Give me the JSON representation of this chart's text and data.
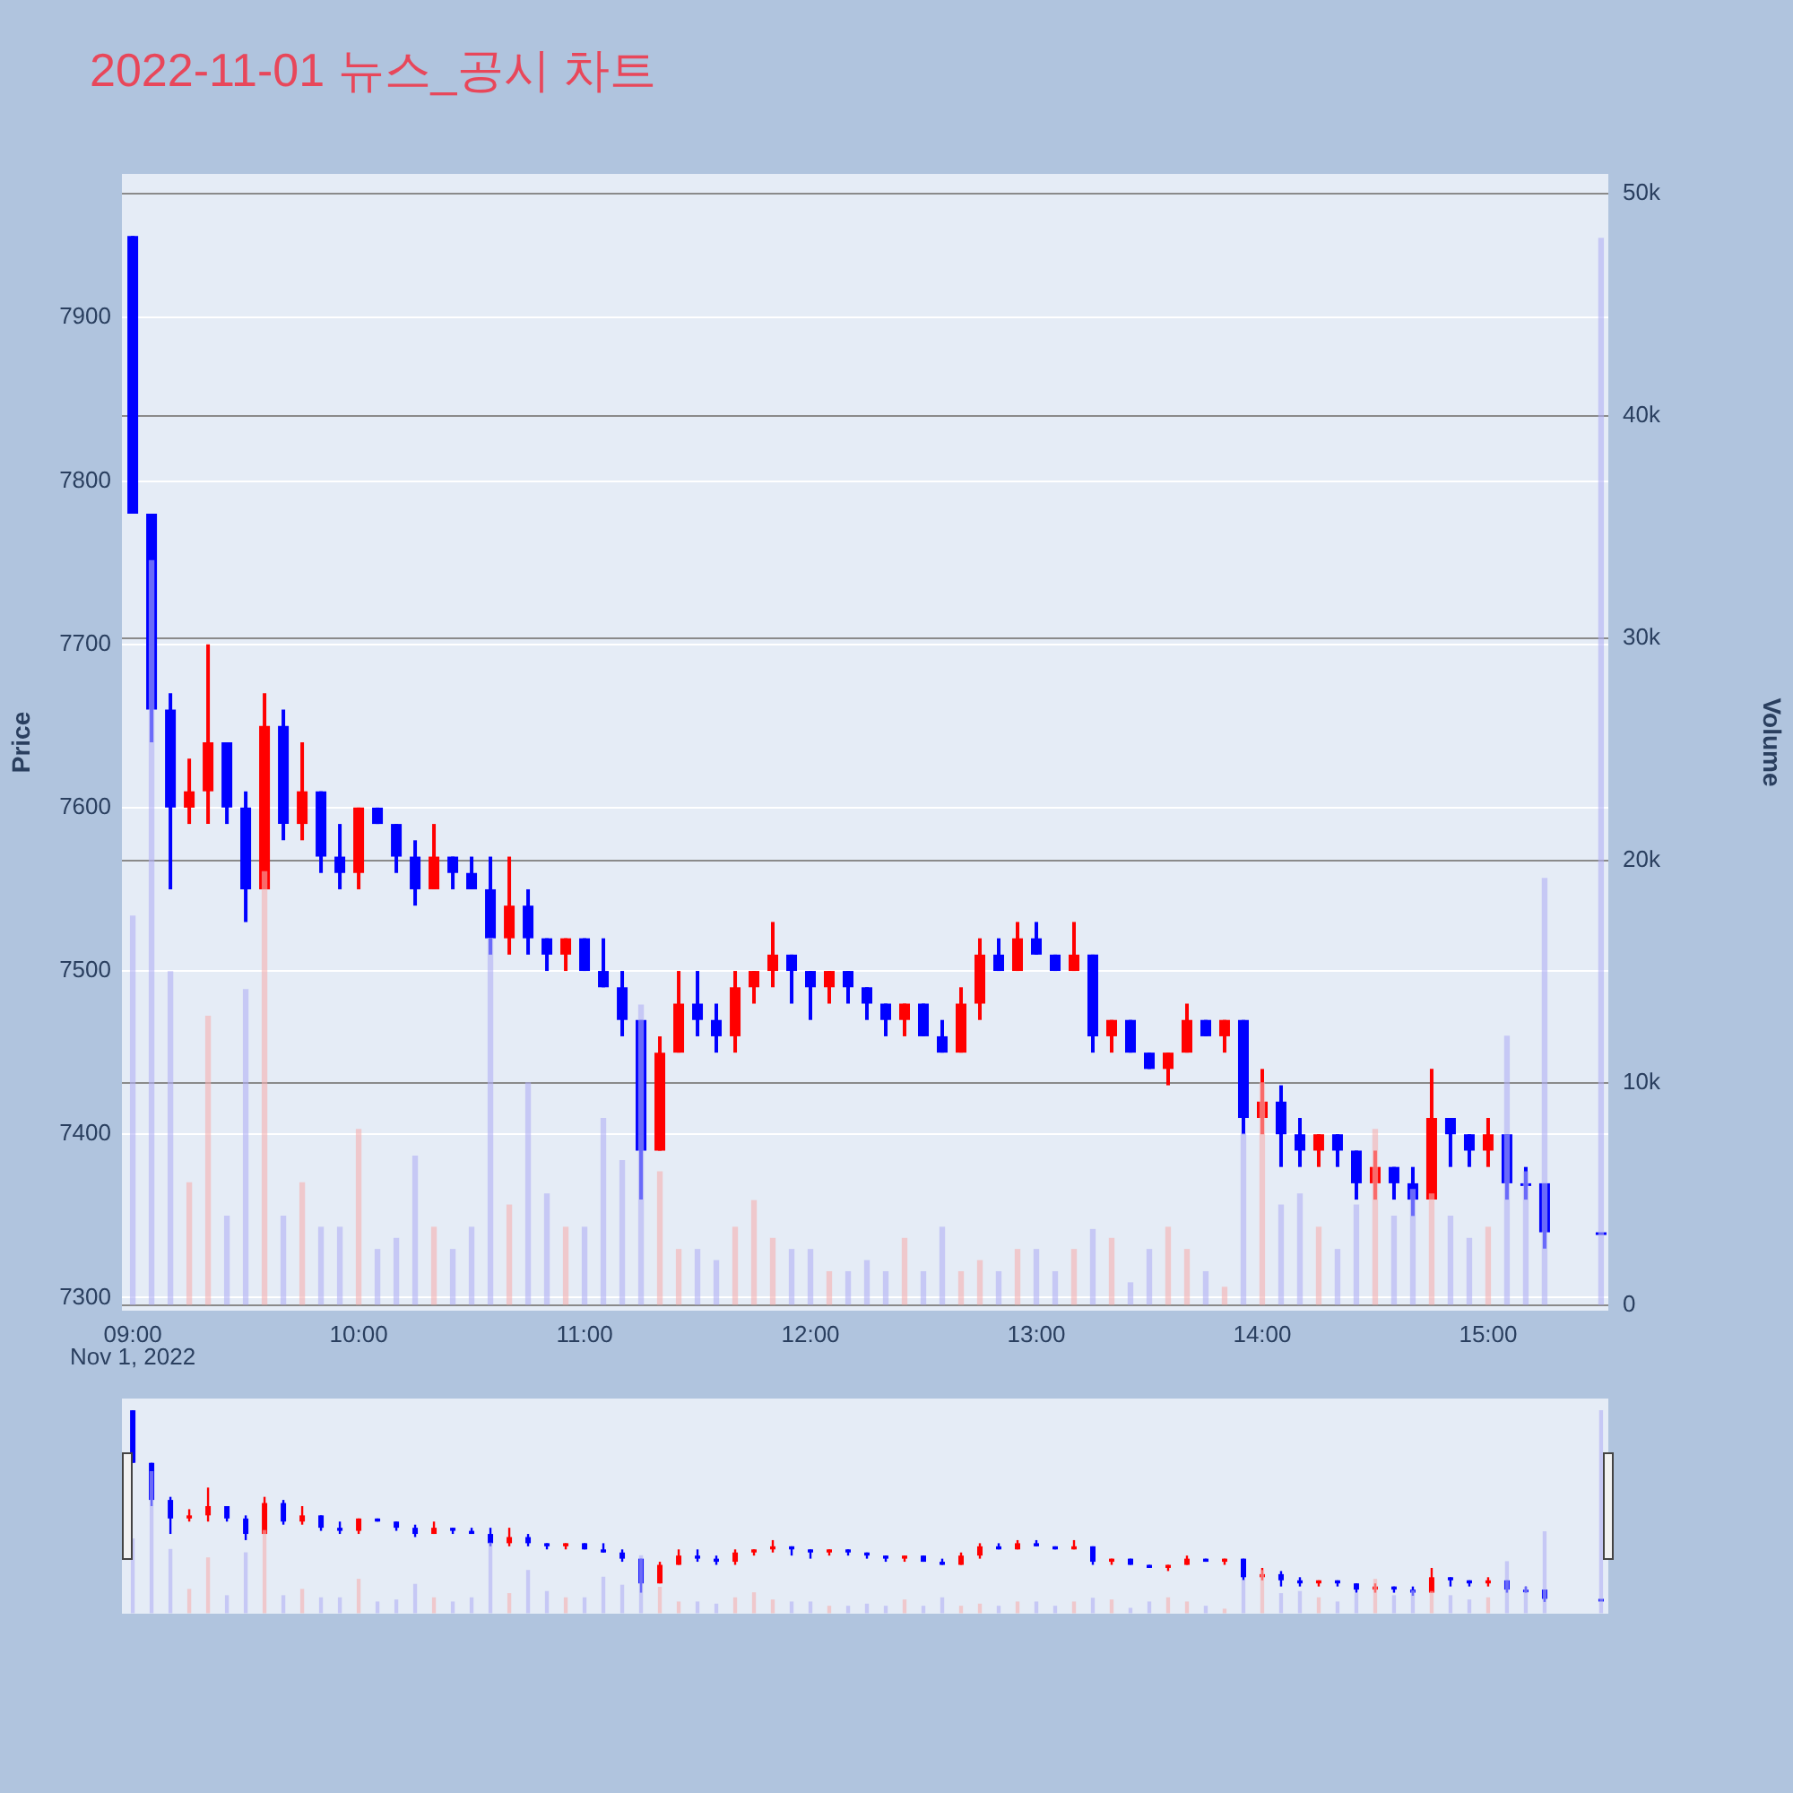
{
  "chart_data": {
    "type": "candlestick",
    "title": "2022-11-01 뉴스_공시 차트",
    "ylabel": "Price",
    "y2label": "Volume",
    "annotations": [
      "Nov 1, 2022"
    ],
    "x": [
      9.0,
      9.0833,
      9.1667,
      9.25,
      9.3333,
      9.4167,
      9.5,
      9.5833,
      9.6667,
      9.75,
      9.8333,
      9.9167,
      10.0,
      10.0833,
      10.1667,
      10.25,
      10.3333,
      10.4167,
      10.5,
      10.5833,
      10.6667,
      10.75,
      10.8333,
      10.9167,
      11.0,
      11.0833,
      11.1667,
      11.25,
      11.3333,
      11.4167,
      11.5,
      11.5833,
      11.6667,
      11.75,
      11.8333,
      11.9167,
      12.0,
      12.0833,
      12.1667,
      12.25,
      12.3333,
      12.4167,
      12.5,
      12.5833,
      12.6667,
      12.75,
      12.8333,
      12.9167,
      13.0,
      13.0833,
      13.1667,
      13.25,
      13.3333,
      13.4167,
      13.5,
      13.5833,
      13.6667,
      13.75,
      13.8333,
      13.9167,
      14.0,
      14.0833,
      14.1667,
      14.25,
      14.3333,
      14.4167,
      14.5,
      14.5833,
      14.6667,
      14.75,
      14.8333,
      14.9167,
      15.0,
      15.0833,
      15.1667,
      15.25,
      15.5
    ],
    "xlim": [
      8.952,
      15.532
    ],
    "xticks": [
      {
        "value": 9,
        "label": "09:00"
      },
      {
        "value": 10,
        "label": "10:00"
      },
      {
        "value": 11,
        "label": "11:00"
      },
      {
        "value": 12,
        "label": "12:00"
      },
      {
        "value": 13,
        "label": "13:00"
      },
      {
        "value": 14,
        "label": "14:00"
      },
      {
        "value": 15,
        "label": "15:00"
      }
    ],
    "ylim": [
      7292,
      7988
    ],
    "yticks": [
      7300,
      7400,
      7500,
      7600,
      7700,
      7800,
      7900
    ],
    "y2lim": [
      -250,
      50900
    ],
    "y2ticks": [
      0,
      {
        "value": 10000,
        "label": "10k"
      },
      {
        "value": 20000,
        "label": "20k"
      },
      {
        "value": 30000,
        "label": "30k"
      },
      {
        "value": 40000,
        "label": "40k"
      },
      {
        "value": 50000,
        "label": "50k"
      }
    ],
    "grid": "y",
    "series": [
      {
        "type": "candlestick",
        "ohlc": [
          [
            7950,
            7950,
            7780,
            7780
          ],
          [
            7780,
            7780,
            7640,
            7660
          ],
          [
            7660,
            7670,
            7550,
            7600
          ],
          [
            7600,
            7630,
            7590,
            7610
          ],
          [
            7610,
            7700,
            7590,
            7640
          ],
          [
            7640,
            7640,
            7590,
            7600
          ],
          [
            7600,
            7610,
            7530,
            7550
          ],
          [
            7550,
            7670,
            7550,
            7650
          ],
          [
            7650,
            7660,
            7580,
            7590
          ],
          [
            7590,
            7640,
            7580,
            7610
          ],
          [
            7610,
            7610,
            7560,
            7570
          ],
          [
            7570,
            7590,
            7550,
            7560
          ],
          [
            7560,
            7600,
            7550,
            7600
          ],
          [
            7600,
            7600,
            7590,
            7590
          ],
          [
            7590,
            7590,
            7560,
            7570
          ],
          [
            7570,
            7580,
            7540,
            7550
          ],
          [
            7550,
            7590,
            7550,
            7570
          ],
          [
            7570,
            7570,
            7550,
            7560
          ],
          [
            7560,
            7570,
            7550,
            7550
          ],
          [
            7550,
            7570,
            7510,
            7520
          ],
          [
            7520,
            7570,
            7510,
            7540
          ],
          [
            7540,
            7550,
            7510,
            7520
          ],
          [
            7520,
            7520,
            7500,
            7510
          ],
          [
            7510,
            7520,
            7500,
            7520
          ],
          [
            7520,
            7520,
            7500,
            7500
          ],
          [
            7500,
            7520,
            7490,
            7490
          ],
          [
            7490,
            7500,
            7460,
            7470
          ],
          [
            7470,
            7470,
            7360,
            7390
          ],
          [
            7390,
            7460,
            7390,
            7450
          ],
          [
            7450,
            7500,
            7450,
            7480
          ],
          [
            7480,
            7500,
            7460,
            7470
          ],
          [
            7470,
            7480,
            7450,
            7460
          ],
          [
            7460,
            7500,
            7450,
            7490
          ],
          [
            7490,
            7500,
            7480,
            7500
          ],
          [
            7500,
            7530,
            7490,
            7510
          ],
          [
            7510,
            7510,
            7480,
            7500
          ],
          [
            7500,
            7500,
            7470,
            7490
          ],
          [
            7490,
            7500,
            7480,
            7500
          ],
          [
            7500,
            7500,
            7480,
            7490
          ],
          [
            7490,
            7490,
            7470,
            7480
          ],
          [
            7480,
            7480,
            7460,
            7470
          ],
          [
            7470,
            7480,
            7460,
            7480
          ],
          [
            7480,
            7480,
            7460,
            7460
          ],
          [
            7460,
            7470,
            7450,
            7450
          ],
          [
            7450,
            7490,
            7450,
            7480
          ],
          [
            7480,
            7520,
            7470,
            7510
          ],
          [
            7510,
            7520,
            7500,
            7500
          ],
          [
            7500,
            7530,
            7500,
            7520
          ],
          [
            7520,
            7530,
            7510,
            7510
          ],
          [
            7510,
            7510,
            7500,
            7500
          ],
          [
            7500,
            7530,
            7500,
            7510
          ],
          [
            7510,
            7510,
            7450,
            7460
          ],
          [
            7460,
            7470,
            7450,
            7470
          ],
          [
            7470,
            7470,
            7450,
            7450
          ],
          [
            7450,
            7450,
            7440,
            7440
          ],
          [
            7440,
            7450,
            7430,
            7450
          ],
          [
            7450,
            7480,
            7450,
            7470
          ],
          [
            7470,
            7470,
            7460,
            7460
          ],
          [
            7460,
            7470,
            7450,
            7470
          ],
          [
            7470,
            7470,
            7400,
            7410
          ],
          [
            7410,
            7440,
            7400,
            7420
          ],
          [
            7420,
            7430,
            7380,
            7400
          ],
          [
            7400,
            7410,
            7380,
            7390
          ],
          [
            7390,
            7400,
            7380,
            7400
          ],
          [
            7400,
            7400,
            7380,
            7390
          ],
          [
            7390,
            7390,
            7360,
            7370
          ],
          [
            7370,
            7390,
            7360,
            7380
          ],
          [
            7380,
            7380,
            7360,
            7370
          ],
          [
            7370,
            7380,
            7350,
            7360
          ],
          [
            7360,
            7440,
            7360,
            7410
          ],
          [
            7410,
            7410,
            7380,
            7400
          ],
          [
            7400,
            7400,
            7380,
            7390
          ],
          [
            7390,
            7410,
            7380,
            7400
          ],
          [
            7400,
            7400,
            7360,
            7370
          ],
          [
            7370,
            7380,
            7360,
            7370
          ],
          [
            7370,
            7370,
            7330,
            7340
          ],
          [
            7340,
            7340,
            7340,
            7340
          ]
        ],
        "colors": [
          "#0000ff",
          "#0000ff",
          "#0000ff",
          "#ff0000",
          "#ff0000",
          "#0000ff",
          "#0000ff",
          "#ff0000",
          "#0000ff",
          "#ff0000",
          "#0000ff",
          "#0000ff",
          "#ff0000",
          "#0000ff",
          "#0000ff",
          "#0000ff",
          "#ff0000",
          "#0000ff",
          "#0000ff",
          "#0000ff",
          "#ff0000",
          "#0000ff",
          "#0000ff",
          "#ff0000",
          "#0000ff",
          "#0000ff",
          "#0000ff",
          "#0000ff",
          "#ff0000",
          "#ff0000",
          "#0000ff",
          "#0000ff",
          "#ff0000",
          "#ff0000",
          "#ff0000",
          "#0000ff",
          "#0000ff",
          "#ff0000",
          "#0000ff",
          "#0000ff",
          "#0000ff",
          "#ff0000",
          "#0000ff",
          "#0000ff",
          "#ff0000",
          "#ff0000",
          "#0000ff",
          "#ff0000",
          "#0000ff",
          "#0000ff",
          "#ff0000",
          "#0000ff",
          "#ff0000",
          "#0000ff",
          "#0000ff",
          "#ff0000",
          "#ff0000",
          "#0000ff",
          "#ff0000",
          "#0000ff",
          "#ff0000",
          "#0000ff",
          "#0000ff",
          "#ff0000",
          "#0000ff",
          "#0000ff",
          "#ff0000",
          "#0000ff",
          "#0000ff",
          "#ff0000",
          "#0000ff",
          "#0000ff",
          "#ff0000",
          "#0000ff",
          "#0000ff",
          "#0000ff",
          "#0000ff"
        ]
      },
      {
        "type": "bar",
        "axis": "y2",
        "values": [
          17500,
          33500,
          15000,
          5500,
          13000,
          4000,
          14200,
          19500,
          4000,
          5500,
          3500,
          3500,
          7900,
          2500,
          3000,
          6700,
          3500,
          2500,
          3500,
          16500,
          4500,
          10000,
          5000,
          3500,
          3500,
          8400,
          6500,
          13500,
          6000,
          2500,
          2500,
          2000,
          3500,
          4700,
          3000,
          2500,
          2500,
          1500,
          1500,
          2000,
          1500,
          3000,
          1500,
          3500,
          1500,
          2000,
          1500,
          2500,
          2500,
          1500,
          2500,
          3400,
          3000,
          1000,
          2500,
          3500,
          2500,
          1500,
          800,
          7700,
          10000,
          4500,
          5000,
          3500,
          2500,
          4500,
          7900,
          4000,
          5200,
          5000,
          4000,
          3000,
          3500,
          12100,
          6000,
          19200,
          48000
        ],
        "colors": [
          "#b0b0f5",
          "#b0b0f5",
          "#b0b0f5",
          "#f5b0b0",
          "#f5b0b0",
          "#b0b0f5",
          "#b0b0f5",
          "#f5b0b0",
          "#b0b0f5",
          "#f5b0b0",
          "#b0b0f5",
          "#b0b0f5",
          "#f5b0b0",
          "#b0b0f5",
          "#b0b0f5",
          "#b0b0f5",
          "#f5b0b0",
          "#b0b0f5",
          "#b0b0f5",
          "#b0b0f5",
          "#f5b0b0",
          "#b0b0f5",
          "#b0b0f5",
          "#f5b0b0",
          "#b0b0f5",
          "#b0b0f5",
          "#b0b0f5",
          "#b0b0f5",
          "#f5b0b0",
          "#f5b0b0",
          "#b0b0f5",
          "#b0b0f5",
          "#f5b0b0",
          "#f5b0b0",
          "#f5b0b0",
          "#b0b0f5",
          "#b0b0f5",
          "#f5b0b0",
          "#b0b0f5",
          "#b0b0f5",
          "#b0b0f5",
          "#f5b0b0",
          "#b0b0f5",
          "#b0b0f5",
          "#f5b0b0",
          "#f5b0b0",
          "#b0b0f5",
          "#f5b0b0",
          "#b0b0f5",
          "#b0b0f5",
          "#f5b0b0",
          "#b0b0f5",
          "#f5b0b0",
          "#b0b0f5",
          "#b0b0f5",
          "#f5b0b0",
          "#f5b0b0",
          "#b0b0f5",
          "#f5b0b0",
          "#b0b0f5",
          "#f5b0b0",
          "#b0b0f5",
          "#b0b0f5",
          "#f5b0b0",
          "#b0b0f5",
          "#b0b0f5",
          "#f5b0b0",
          "#b0b0f5",
          "#b0b0f5",
          "#f5b0b0",
          "#b0b0f5",
          "#b0b0f5",
          "#f5b0b0",
          "#b0b0f5",
          "#b0b0f5",
          "#b0b0f5",
          "#b0b0f5"
        ]
      }
    ]
  }
}
